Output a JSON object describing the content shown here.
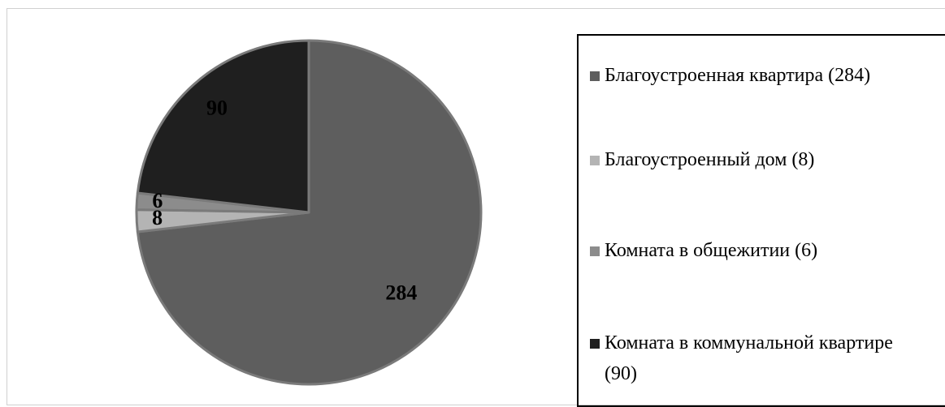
{
  "chart_data": {
    "type": "pie",
    "categories": [
      "Благоустроенная квартира (284)",
      "Благоустроенный дом (8)",
      "Комната в общежитии (6)",
      "Комната в коммунальной квартире (90)"
    ],
    "values": [
      284,
      8,
      6,
      90
    ],
    "colors": [
      "#5e5e5e",
      "#b4b4b4",
      "#8c8c8c",
      "#1f1f1f"
    ],
    "legend": "right"
  }
}
